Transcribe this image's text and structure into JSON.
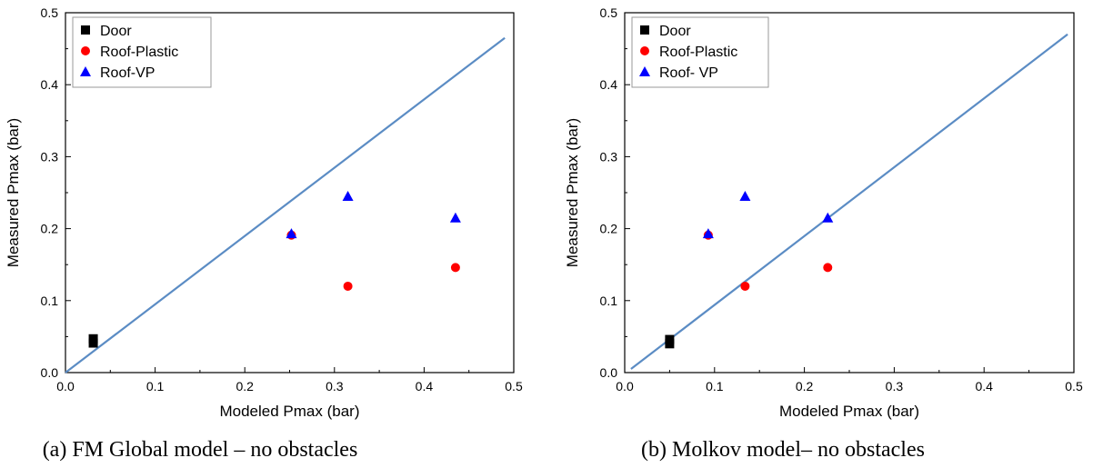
{
  "colors": {
    "door": "#000000",
    "roof_plastic": "#ff0000",
    "roof_vp": "#0000ff",
    "reference_line": "#5b8cc4"
  },
  "chart_data": [
    {
      "type": "scatter",
      "caption": "(a) FM Global model – no obstacles",
      "xlabel": "Modeled Pmax (bar)",
      "ylabel": "Measured Pmax (bar)",
      "xlim": [
        0.0,
        0.5
      ],
      "ylim": [
        0.0,
        0.5
      ],
      "xticks": [
        "0.0",
        "0.1",
        "0.2",
        "0.3",
        "0.4",
        "0.5"
      ],
      "yticks": [
        "0.0",
        "0.1",
        "0.2",
        "0.3",
        "0.4",
        "0.5"
      ],
      "grid": false,
      "legend_position": "top-left",
      "series": [
        {
          "name": "Door",
          "marker": "square",
          "color": "#000000",
          "points": [
            [
              0.031,
              0.047
            ],
            [
              0.031,
              0.041
            ]
          ]
        },
        {
          "name": "Roof-Plastic",
          "marker": "circle",
          "color": "#ff0000",
          "points": [
            [
              0.252,
              0.191
            ],
            [
              0.315,
              0.12
            ],
            [
              0.435,
              0.146
            ]
          ]
        },
        {
          "name": "Roof-VP",
          "marker": "triangle",
          "color": "#0000ff",
          "points": [
            [
              0.252,
              0.193
            ],
            [
              0.315,
              0.245
            ],
            [
              0.435,
              0.215
            ]
          ]
        }
      ],
      "reference_line": {
        "color": "#5b8cc4",
        "x": [
          0.0,
          0.49
        ],
        "y": [
          0.0,
          0.465
        ]
      }
    },
    {
      "type": "scatter",
      "caption": "(b) Molkov model– no obstacles",
      "xlabel": "Modeled Pmax (bar)",
      "ylabel": "Measured Pmax (bar)",
      "xlim": [
        0.0,
        0.5
      ],
      "ylim": [
        0.0,
        0.5
      ],
      "xticks": [
        "0.0",
        "0.1",
        "0.2",
        "0.3",
        "0.4",
        "0.5"
      ],
      "yticks": [
        "0.0",
        "0.1",
        "0.2",
        "0.3",
        "0.4",
        "0.5"
      ],
      "grid": false,
      "legend_position": "top-left",
      "series": [
        {
          "name": "Door",
          "marker": "square",
          "color": "#000000",
          "points": [
            [
              0.05,
              0.046
            ],
            [
              0.05,
              0.04
            ]
          ]
        },
        {
          "name": "Roof-Plastic",
          "marker": "circle",
          "color": "#ff0000",
          "points": [
            [
              0.093,
              0.191
            ],
            [
              0.134,
              0.12
            ],
            [
              0.226,
              0.146
            ]
          ]
        },
        {
          "name": "Roof- VP",
          "marker": "triangle",
          "color": "#0000ff",
          "points": [
            [
              0.093,
              0.193
            ],
            [
              0.134,
              0.245
            ],
            [
              0.226,
              0.215
            ]
          ]
        }
      ],
      "reference_line": {
        "color": "#5b8cc4",
        "x": [
          0.007,
          0.493
        ],
        "y": [
          0.005,
          0.47
        ]
      }
    }
  ]
}
